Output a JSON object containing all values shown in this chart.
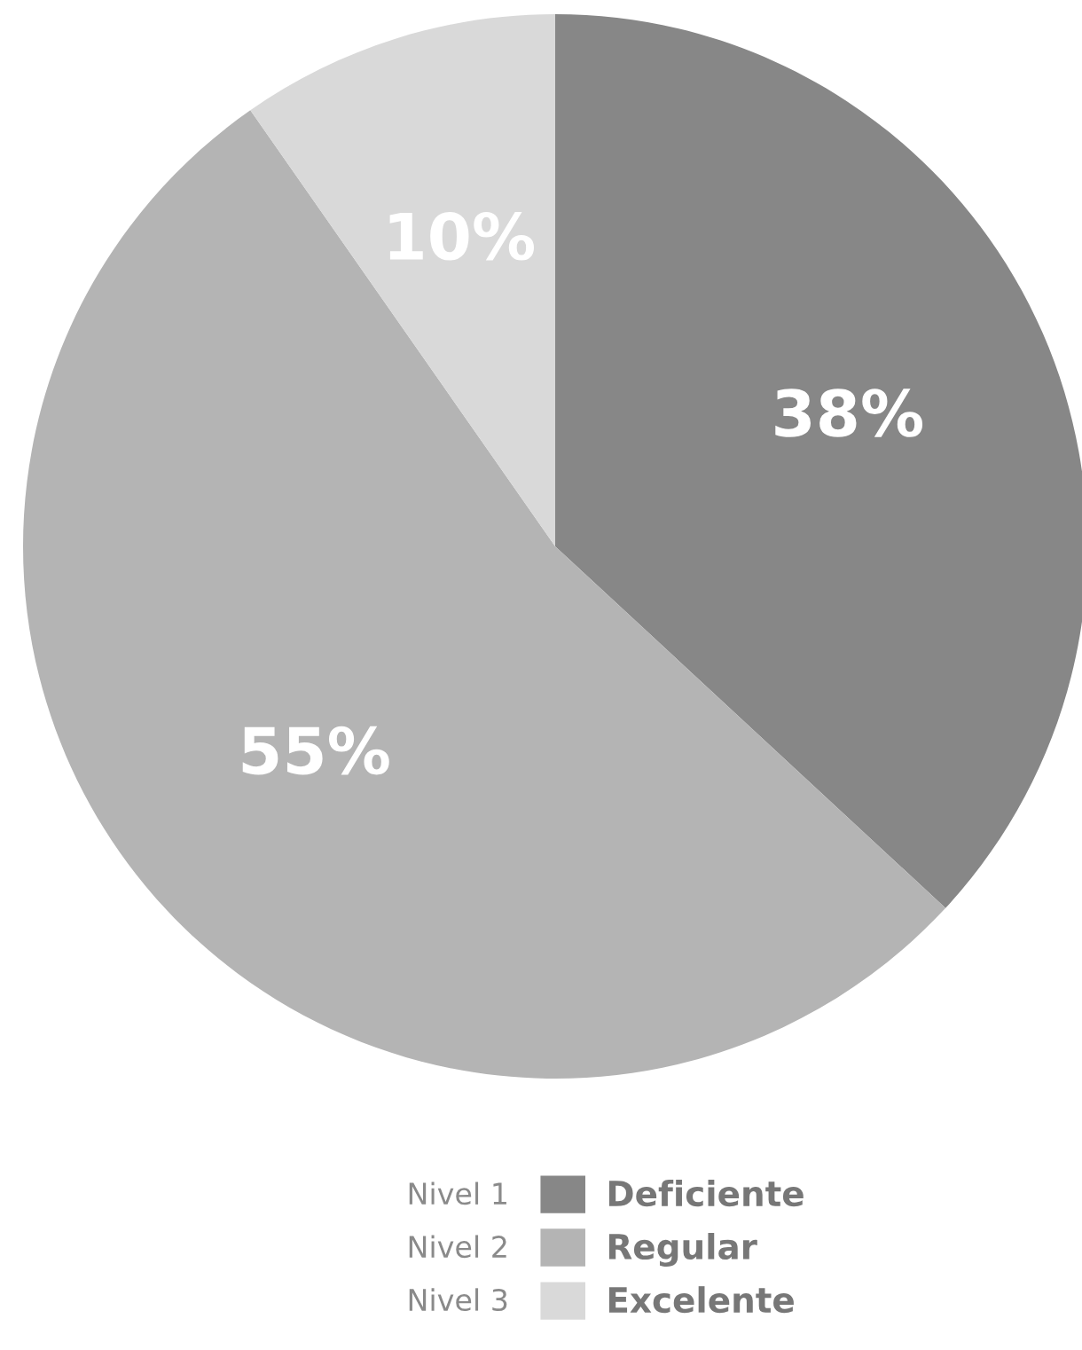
{
  "chart_data": {
    "type": "pie",
    "categories": [
      "Deficiente",
      "Regular",
      "Excelente"
    ],
    "values": [
      38,
      55,
      10
    ],
    "colors": [
      "#878787",
      "#b4b4b4",
      "#d9d9d9"
    ],
    "value_labels": [
      "38%",
      "55%",
      "10%"
    ],
    "legend": "bottom",
    "annotations": [
      "Nivel 1",
      "Nivel 2",
      "Nivel 3"
    ]
  }
}
